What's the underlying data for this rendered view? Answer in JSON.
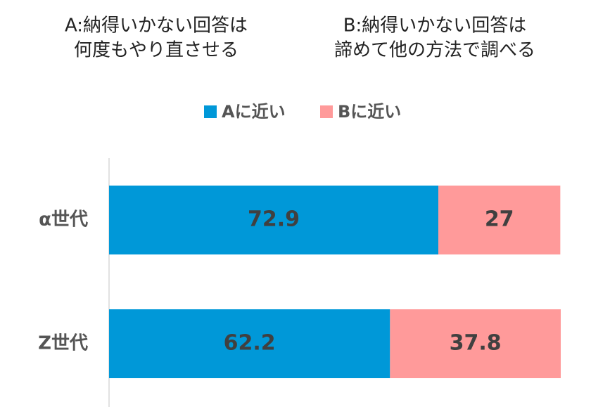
{
  "chart_data": {
    "type": "stacked-barh",
    "annotations": [
      {
        "lines": [
          "A:納得いかない回答は",
          "何度もやり直させる"
        ]
      },
      {
        "lines": [
          "B:納得いかない回答は",
          "諦めて他の方法で調べる"
        ]
      }
    ],
    "categories": [
      "α世代",
      "Z世代"
    ],
    "series": [
      {
        "name": "Aに近い",
        "color": "#0098d8",
        "values": [
          72.9,
          62.2
        ]
      },
      {
        "name": "Bに近い",
        "color": "#ff9a9a",
        "values": [
          27,
          37.8
        ]
      }
    ],
    "xlim": [
      0,
      100
    ]
  }
}
